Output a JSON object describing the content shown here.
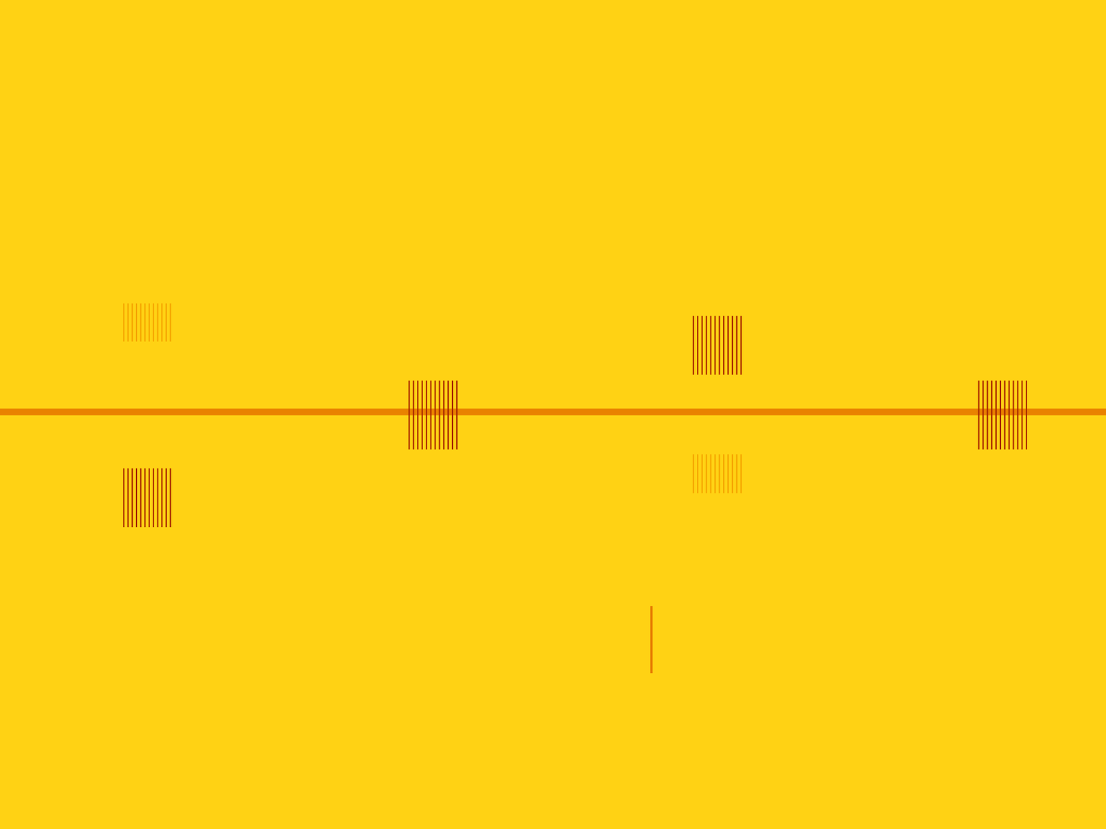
{
  "chart_data": {
    "type": "heatmap",
    "tick_labels": false,
    "grid": false,
    "xlim": [
      0,
      100
    ],
    "ylim": [
      0,
      100
    ],
    "zlim": [
      0,
      1
    ],
    "cells": [
      {
        "x": [
          0,
          100
        ],
        "y": [
          49.9,
          50.7
        ],
        "value": 0.45
      },
      {
        "x": [
          11.0,
          15.6
        ],
        "y": [
          36.4,
          43.5
        ],
        "value": 0.9,
        "stripes": 12
      },
      {
        "x": [
          11.0,
          15.6
        ],
        "y": [
          58.8,
          63.4
        ],
        "value": 0.3,
        "stripes": 12
      },
      {
        "x": [
          36.8,
          41.5
        ],
        "y": [
          45.8,
          54.1
        ],
        "value": 0.9,
        "stripes": 12
      },
      {
        "x": [
          62.5,
          67.2
        ],
        "y": [
          54.8,
          61.9
        ],
        "value": 0.9,
        "stripes": 12
      },
      {
        "x": [
          62.5,
          67.2
        ],
        "y": [
          40.5,
          45.2
        ],
        "value": 0.3,
        "stripes": 12
      },
      {
        "x": [
          88.3,
          93.0
        ],
        "y": [
          45.8,
          54.1
        ],
        "value": 0.9,
        "stripes": 12
      },
      {
        "x": [
          58.8,
          59.0
        ],
        "y": [
          18.8,
          26.9
        ],
        "value": 0.5
      }
    ]
  }
}
